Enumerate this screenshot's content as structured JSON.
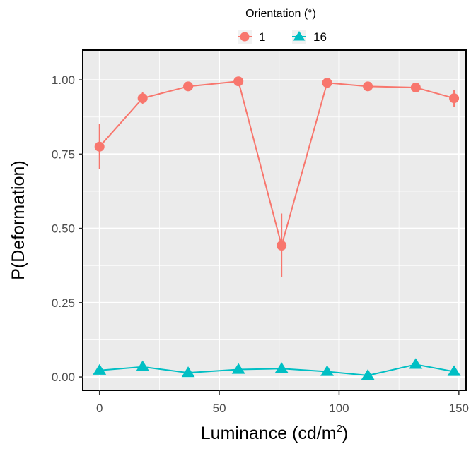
{
  "chart_data": {
    "type": "line",
    "xlabel": "Luminance (cd/m",
    "xlabel_superscript": "2",
    "xlabel_suffix": ")",
    "ylabel": "P(Deformation)",
    "xlim": [
      -7,
      153
    ],
    "ylim": [
      -0.045,
      1.1
    ],
    "x_ticks": [
      0,
      50,
      100,
      150
    ],
    "x_tick_labels": [
      "0",
      "50",
      "100",
      "150"
    ],
    "y_ticks": [
      0.0,
      0.25,
      0.5,
      0.75,
      1.0
    ],
    "y_tick_labels": [
      "0.00",
      "0.25",
      "0.50",
      "0.75",
      "1.00"
    ],
    "grid": true,
    "legend": {
      "title": "Orientation (°)",
      "position": "top"
    },
    "series": [
      {
        "name": "1",
        "color": "#F8766D",
        "marker": "circle",
        "x": [
          0,
          18,
          37,
          58,
          76,
          95,
          112,
          132,
          148
        ],
        "y": [
          0.775,
          0.938,
          0.978,
          0.995,
          0.442,
          0.99,
          0.978,
          0.974,
          0.938
        ],
        "error_low": [
          0.7,
          0.918,
          0.978,
          0.995,
          0.335,
          0.99,
          0.978,
          0.974,
          0.908
        ],
        "error_high": [
          0.852,
          0.958,
          0.978,
          0.995,
          0.55,
          0.99,
          0.978,
          0.974,
          0.965
        ]
      },
      {
        "name": "16",
        "color": "#00BFC4",
        "marker": "triangle",
        "x": [
          0,
          18,
          37,
          58,
          76,
          95,
          112,
          132,
          148
        ],
        "y": [
          0.022,
          0.034,
          0.014,
          0.025,
          0.028,
          0.018,
          0.005,
          0.042,
          0.018
        ],
        "error_low": [
          0.022,
          0.034,
          0.014,
          0.025,
          0.028,
          0.018,
          0.005,
          0.042,
          0.018
        ],
        "error_high": [
          0.022,
          0.034,
          0.014,
          0.025,
          0.028,
          0.018,
          0.005,
          0.042,
          0.018
        ]
      }
    ]
  }
}
